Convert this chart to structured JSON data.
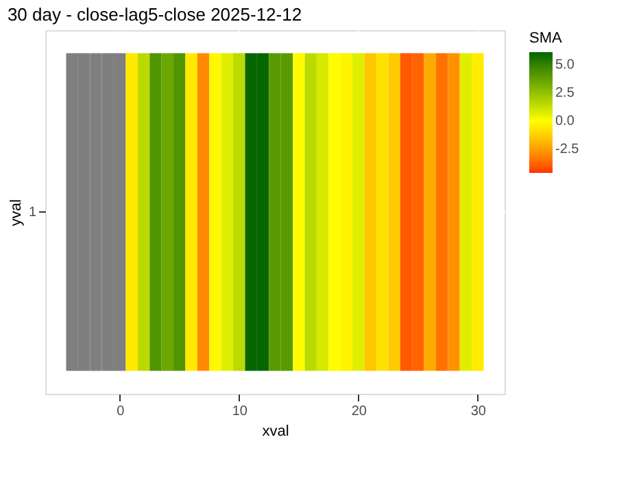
{
  "chart_data": {
    "type": "heatmap",
    "title": "30 day - close-lag5-close  2025-12-12",
    "xlabel": "xval",
    "ylabel": "yval",
    "legend_title": "SMA",
    "x": [
      -4,
      -3,
      -2,
      -1,
      0,
      1,
      2,
      3,
      4,
      5,
      6,
      7,
      8,
      9,
      10,
      11,
      12,
      13,
      14,
      15,
      16,
      17,
      18,
      19,
      20,
      21,
      22,
      23,
      24,
      25,
      26,
      27,
      28,
      29,
      30
    ],
    "y_categories": [
      "1"
    ],
    "cells": [
      [
        null,
        null,
        null,
        null,
        null,
        -0.6,
        1.5,
        4.2,
        3.5,
        4.2,
        -0.6,
        -3.0,
        -0.2,
        0.7,
        1.5,
        6.0,
        6.0,
        4.0,
        4.0,
        -0.1,
        1.5,
        0.9,
        -0.1,
        -0.3,
        0.7,
        -1.5,
        -0.8,
        -1.4,
        -4.0,
        -3.8,
        -2.2,
        -3.5,
        -2.8,
        0.7,
        -0.5
      ]
    ],
    "xlim": [
      -6.25,
      32.25
    ],
    "xticks": [
      0,
      10,
      20,
      30
    ],
    "clim": [
      -4.6,
      6.1
    ],
    "cticks": [
      {
        "value": -2.5,
        "label": "-2.5"
      },
      {
        "value": 0,
        "label": "0.0"
      },
      {
        "value": 2.5,
        "label": "2.5"
      },
      {
        "value": 5,
        "label": "5.0"
      }
    ],
    "grid": true
  }
}
